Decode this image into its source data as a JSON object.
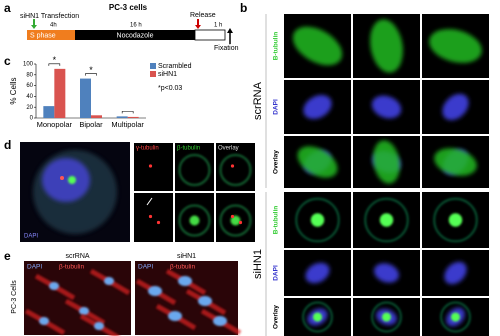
{
  "panel_a": {
    "label": "a",
    "title": "PC-3 cells",
    "transfection": "siHN1 Transfection",
    "t1": "4h",
    "t2": "16 h",
    "release": "Release",
    "t3": "1 h",
    "phase1": "S phase",
    "phase2": "Nocodazole",
    "fixation": "Fixation"
  },
  "panel_b": {
    "label": "b",
    "groups": [
      {
        "name": "scrRNA",
        "rows": [
          "Β-tubulin",
          "DAPI",
          "Overlay"
        ]
      },
      {
        "name": "siHN1",
        "rows": [
          "Β-tubulin",
          "DAPI",
          "Overlay"
        ]
      }
    ]
  },
  "chart_data": {
    "type": "bar",
    "label": "c",
    "y_label": "% Cells",
    "categories": [
      "Monopolar",
      "Bipolar",
      "Multipolar"
    ],
    "series": [
      {
        "name": "Scrambled",
        "color": "#4f81bd",
        "values": [
          22,
          73,
          3
        ]
      },
      {
        "name": "siHN1",
        "color": "#d9534f",
        "values": [
          91,
          5,
          2
        ]
      }
    ],
    "ylim": [
      0,
      100
    ],
    "yticks": [
      0,
      20,
      40,
      60,
      80,
      100
    ],
    "annotations": [
      "*p<0.03",
      "*",
      "*"
    ],
    "legend": "upper right"
  },
  "panel_d": {
    "label": "d",
    "dapi": "DAPI",
    "columns": [
      "γ-tubulin",
      "β-tubulin",
      "Overlay"
    ]
  },
  "panel_e": {
    "label": "e",
    "side": "PC-3 Cells",
    "columns": [
      "scrRNA",
      "siHN1"
    ],
    "stain1": "DAPI",
    "stain2": "β-tubulin"
  }
}
